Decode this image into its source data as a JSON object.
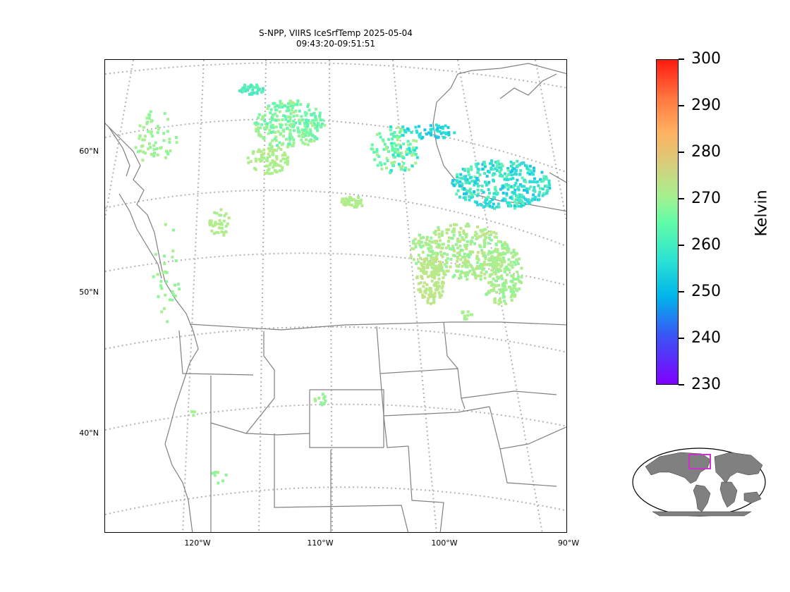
{
  "title": {
    "line1": "S-NPP, VIIRS IceSrfTemp 2025-05-04",
    "line2": "09:43:20-09:51:51"
  },
  "map": {
    "lat_labels": [
      "60°N",
      "50°N",
      "40°N"
    ],
    "lon_labels": [
      "120°W",
      "110°W",
      "100°W",
      "90°W"
    ],
    "coastline_color": "#808080",
    "gridline_color": "#b3b3b3"
  },
  "colorbar": {
    "label": "Kelvin",
    "min": 230,
    "max": 300,
    "ticks": [
      "300",
      "290",
      "280",
      "270",
      "260",
      "250",
      "240",
      "230"
    ],
    "colormap": "rainbow"
  },
  "inset": {
    "highlight_color": "#cc33cc",
    "land_color": "#808080"
  }
}
